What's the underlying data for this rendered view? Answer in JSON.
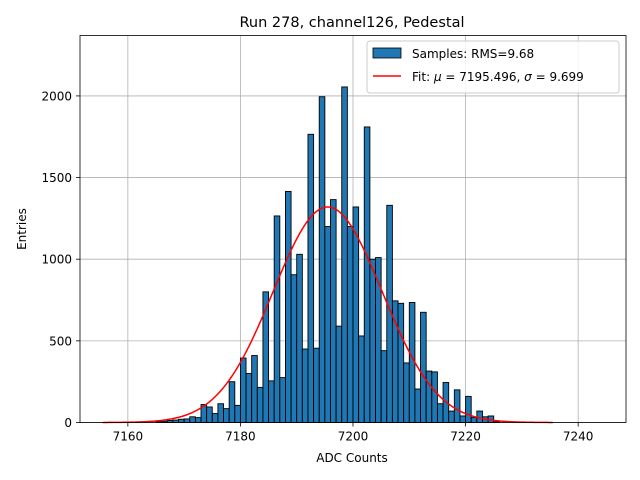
{
  "chart_data": {
    "type": "bar",
    "title": "Run 278, channel126, Pedestal",
    "xlabel": "ADC Counts",
    "ylabel": "Entries",
    "xlim": [
      7151.5,
      7248.5
    ],
    "ylim": [
      0,
      2370
    ],
    "xticks": [
      7160,
      7180,
      7200,
      7220,
      7240
    ],
    "yticks": [
      0,
      500,
      1000,
      1500,
      2000
    ],
    "grid": true,
    "legend_position": "top-right",
    "bin_width": 1,
    "series": [
      {
        "name": "Samples: RMS=9.68",
        "kind": "histogram",
        "color": "#1f77b4",
        "edgecolor": "#000000",
        "bin_starts": [
          7165,
          7166,
          7167,
          7168,
          7169,
          7170,
          7171,
          7172,
          7173,
          7174,
          7175,
          7176,
          7177,
          7178,
          7179,
          7180,
          7181,
          7182,
          7183,
          7184,
          7185,
          7186,
          7187,
          7188,
          7189,
          7190,
          7191,
          7192,
          7193,
          7194,
          7195,
          7196,
          7197,
          7198,
          7199,
          7200,
          7201,
          7202,
          7203,
          7204,
          7205,
          7206,
          7207,
          7208,
          7209,
          7210,
          7211,
          7212,
          7213,
          7214,
          7215,
          7216,
          7217,
          7218,
          7219,
          7220,
          7221,
          7222,
          7223,
          7224,
          7225
        ],
        "values": [
          5,
          8,
          12,
          15,
          20,
          22,
          35,
          30,
          110,
          95,
          55,
          115,
          85,
          250,
          105,
          395,
          300,
          410,
          215,
          800,
          255,
          1265,
          275,
          1415,
          905,
          1030,
          450,
          1765,
          455,
          1995,
          1200,
          1365,
          590,
          2055,
          1200,
          1320,
          530,
          1810,
          1000,
          1010,
          440,
          1330,
          745,
          730,
          365,
          735,
          205,
          675,
          315,
          310,
          115,
          245,
          70,
          200,
          40,
          160,
          30,
          70,
          35,
          40,
          5
        ]
      },
      {
        "name": "Fit: μ = 7195.496, σ = 9.699",
        "kind": "gaussian-fit",
        "color": "#ff0000",
        "mu": 7195.496,
        "sigma": 9.699,
        "amplitude": 1320,
        "x_range": [
          7155.5,
          7235.5
        ]
      }
    ],
    "legend": {
      "entries": [
        {
          "plain": "Samples: RMS=9.68"
        },
        {
          "prefix": "Fit: ",
          "sym1": "μ",
          "mid": " = 7195.496, ",
          "sym2": "σ",
          "suffix": " = 9.699"
        }
      ]
    }
  }
}
